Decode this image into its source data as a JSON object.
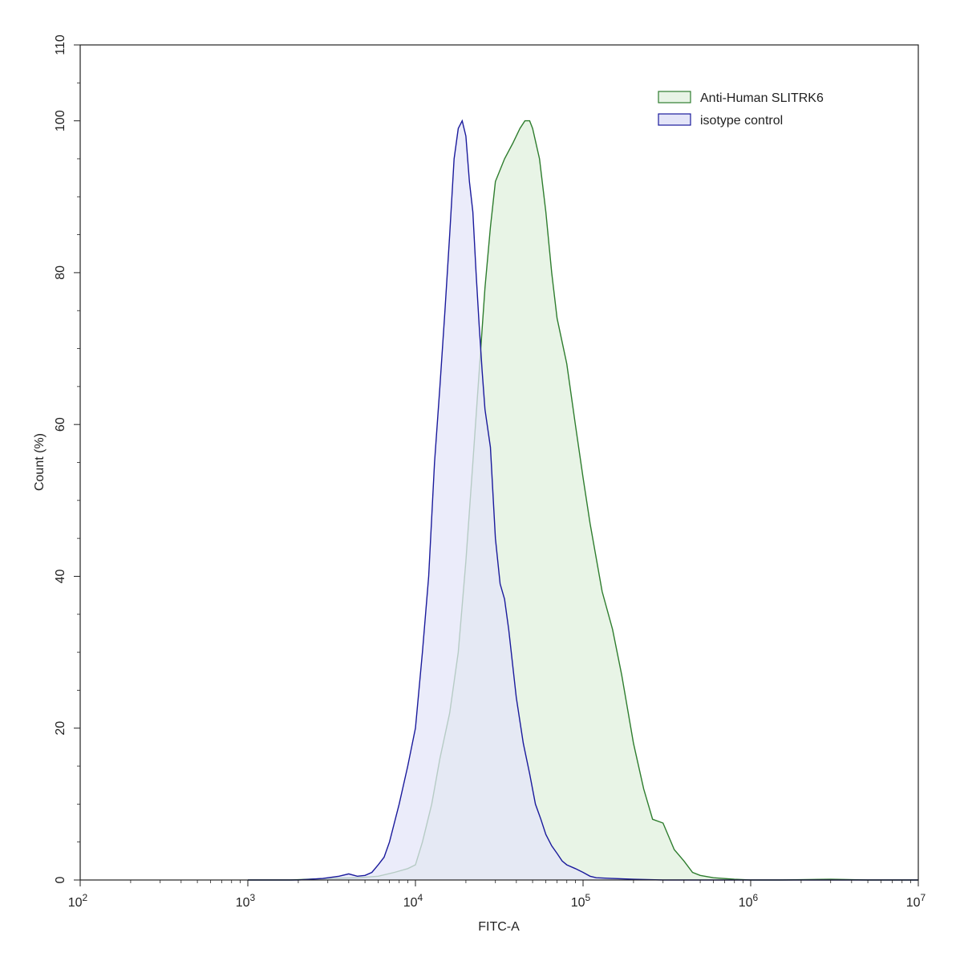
{
  "chart_data": {
    "type": "area",
    "title": "",
    "xlabel": "FITC-A",
    "ylabel": "Count  (%)",
    "x_scale": "log",
    "xlim": [
      100,
      10000000
    ],
    "ylim": [
      0,
      110
    ],
    "x_tick_labels": [
      {
        "base": "10",
        "exp": "2"
      },
      {
        "base": "10",
        "exp": "3"
      },
      {
        "base": "10",
        "exp": "4"
      },
      {
        "base": "10",
        "exp": "5"
      },
      {
        "base": "10",
        "exp": "6"
      },
      {
        "base": "10",
        "exp": "7"
      }
    ],
    "y_ticks": [
      0,
      20,
      40,
      60,
      80,
      100
    ],
    "y_tick_labels": [
      "0",
      "20",
      "40",
      "60",
      "80",
      "100"
    ],
    "y_top_label": "110",
    "grid": false,
    "legend_position": "top-right",
    "series": [
      {
        "name": "Anti-Human SLITRK6",
        "stroke": "#2e7d2e",
        "fill": "#e8f4e6",
        "x": [
          1000,
          1800,
          3000,
          4500,
          6000,
          7500,
          9000,
          10000,
          11000,
          12500,
          14000,
          16000,
          18000,
          20000,
          22000,
          24000,
          26000,
          28000,
          30000,
          34000,
          38000,
          42000,
          45000,
          48000,
          50000,
          55000,
          60000,
          65000,
          70000,
          80000,
          90000,
          100000,
          110000,
          130000,
          150000,
          170000,
          200000,
          230000,
          260000,
          300000,
          350000,
          400000,
          450000,
          500000,
          600000,
          800000,
          1000000,
          1500000,
          3000000,
          5000000,
          10000000
        ],
        "y": [
          0,
          0,
          0.2,
          0.3,
          0.5,
          1,
          1.5,
          2,
          5,
          10,
          16,
          22,
          30,
          42,
          55,
          67,
          78,
          86,
          92,
          95,
          97,
          99,
          100,
          100,
          99,
          95,
          88,
          80,
          74,
          68,
          60,
          53,
          47,
          38,
          33,
          27,
          18,
          12,
          8,
          7.5,
          4,
          2.5,
          1,
          0.6,
          0.3,
          0.1,
          0,
          0,
          0.1,
          0,
          0
        ]
      },
      {
        "name": "isotype control",
        "stroke": "#1a1a9c",
        "fill": "#e4e5f8",
        "x": [
          1000,
          2000,
          2800,
          3500,
          4000,
          4500,
          5000,
          5500,
          6000,
          6500,
          7000,
          8000,
          9000,
          10000,
          11000,
          12000,
          13000,
          14000,
          15000,
          16000,
          17000,
          18000,
          19000,
          20000,
          21000,
          22000,
          23000,
          24000,
          25000,
          26000,
          28000,
          30000,
          32000,
          34000,
          36000,
          40000,
          44000,
          48000,
          52000,
          56000,
          60000,
          65000,
          70000,
          75000,
          80000,
          90000,
          100000,
          110000,
          120000,
          150000,
          200000,
          300000,
          10000000
        ],
        "y": [
          0,
          0,
          0.2,
          0.5,
          0.8,
          0.5,
          0.6,
          1,
          2,
          3,
          5,
          10,
          15,
          20,
          30,
          40,
          55,
          65,
          75,
          85,
          95,
          99,
          100,
          98,
          92,
          88,
          80,
          73,
          67,
          62,
          57,
          45,
          39,
          37,
          33,
          24,
          18,
          14,
          10,
          8,
          6,
          4.5,
          3.5,
          2.5,
          2,
          1.5,
          1,
          0.5,
          0.3,
          0.2,
          0.1,
          0,
          0
        ]
      }
    ]
  }
}
